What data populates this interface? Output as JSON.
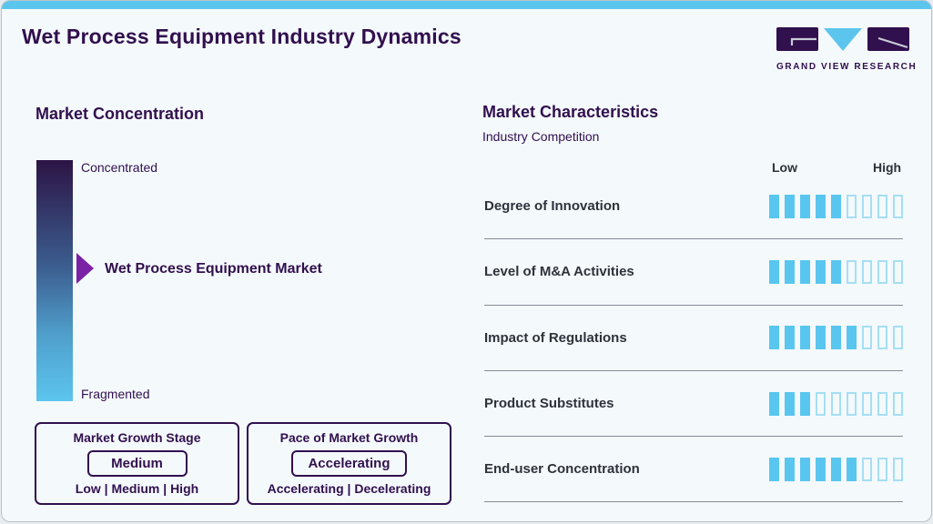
{
  "page": {
    "title": "Wet Process Equipment Industry Dynamics",
    "brand_name": "GRAND VIEW RESEARCH",
    "colors": {
      "accent_blue": "#5cc5ee",
      "brand_purple": "#31104e",
      "arrow_purple": "#7a22a5",
      "bar_fill": "#59c6ef",
      "bar_outline": "#a5def5",
      "divider_gray": "#868c95",
      "background": "#f4f9fc"
    }
  },
  "market_concentration": {
    "heading": "Market Concentration",
    "scale_top_label": "Concentrated",
    "scale_bottom_label": "Fragmented",
    "marker_label": "Wet Process Equipment Market",
    "growth_stage_box": {
      "title": "Market Growth Stage",
      "value": "Medium",
      "options": "Low | Medium | High"
    },
    "pace_box": {
      "title": "Pace of Market Growth",
      "value": "Accelerating",
      "options": "Accelerating | Decelerating"
    }
  },
  "market_characteristics": {
    "heading": "Market Characteristics",
    "subheading": "Industry Competition",
    "scale_low_label": "Low",
    "scale_high_label": "High",
    "total_segments": 9,
    "rows": [
      {
        "label": "Degree of Innovation",
        "rating": 5
      },
      {
        "label": "Level of M&A Activities",
        "rating": 5
      },
      {
        "label": "Impact of Regulations",
        "rating": 6
      },
      {
        "label": "Product Substitutes",
        "rating": 3
      },
      {
        "label": "End-user Concentration",
        "rating": 6
      }
    ]
  },
  "chart_data": {
    "type": "bar",
    "title": "Market Characteristics — Industry Competition",
    "categories": [
      "Degree of Innovation",
      "Level of M&A Activities",
      "Impact of Regulations",
      "Product Substitutes",
      "End-user Concentration"
    ],
    "values": [
      5,
      5,
      6,
      3,
      6
    ],
    "xlabel": "",
    "ylabel": "Rating (filled segments of 9, Low to High)",
    "ylim": [
      0,
      9
    ],
    "legend": "none",
    "annotations": {
      "market_concentration_scale": [
        "Concentrated",
        "Fragmented"
      ],
      "market_concentration_marker": "Wet Process Equipment Market (upper-middle of scale)",
      "market_growth_stage": "Medium (of Low | Medium | High)",
      "pace_of_market_growth": "Accelerating (of Accelerating | Decelerating)"
    }
  }
}
